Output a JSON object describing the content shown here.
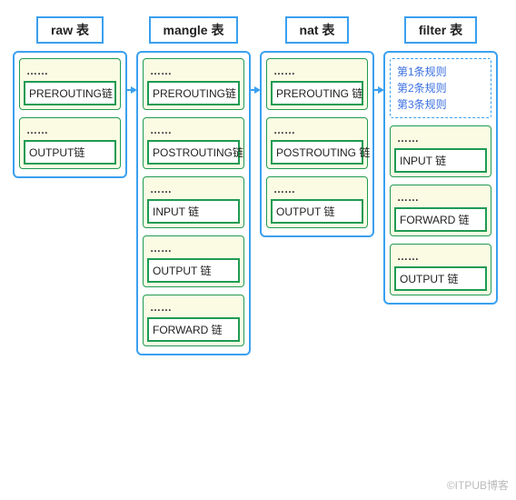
{
  "colors": {
    "border_blue": "#3aa0f0",
    "arrow_blue": "#3aa0f0",
    "chain_fill": "#fbfbe4",
    "chain_border": "#1e9b52",
    "rules_border": "#3aa0f0",
    "rules_text": "#3a6fe0",
    "dots_text": "#333333",
    "label_text": "#222222",
    "watermark": "#bbbbbb"
  },
  "layout": {
    "arrow_width": 16,
    "table_body_width": 112
  },
  "tables": [
    {
      "title": "raw 表",
      "chains": [
        {
          "dots": "……",
          "label": "PREROUTING链"
        },
        {
          "dots": "……",
          "label": "OUTPUT链"
        }
      ]
    },
    {
      "title": "mangle 表",
      "chains": [
        {
          "dots": "……",
          "label": "PREROUTING链"
        },
        {
          "dots": "……",
          "label": "POSTROUTING链"
        },
        {
          "dots": "……",
          "label": "INPUT 链"
        },
        {
          "dots": "……",
          "label": "OUTPUT 链"
        },
        {
          "dots": "……",
          "label": "FORWARD 链"
        }
      ]
    },
    {
      "title": "nat 表",
      "chains": [
        {
          "dots": "……",
          "label": "PREROUTING 链"
        },
        {
          "dots": "……",
          "label": "POSTROUTING 链"
        },
        {
          "dots": "……",
          "label": "OUTPUT 链"
        }
      ]
    },
    {
      "title": "filter 表",
      "rules": [
        "第1条规则",
        "第2条规则",
        "第3条规则"
      ],
      "chains": [
        {
          "dots": "……",
          "label": "INPUT 链"
        },
        {
          "dots": "……",
          "label": "FORWARD 链"
        },
        {
          "dots": "……",
          "label": "OUTPUT 链"
        }
      ]
    }
  ],
  "watermark": "©ITPUB博客"
}
